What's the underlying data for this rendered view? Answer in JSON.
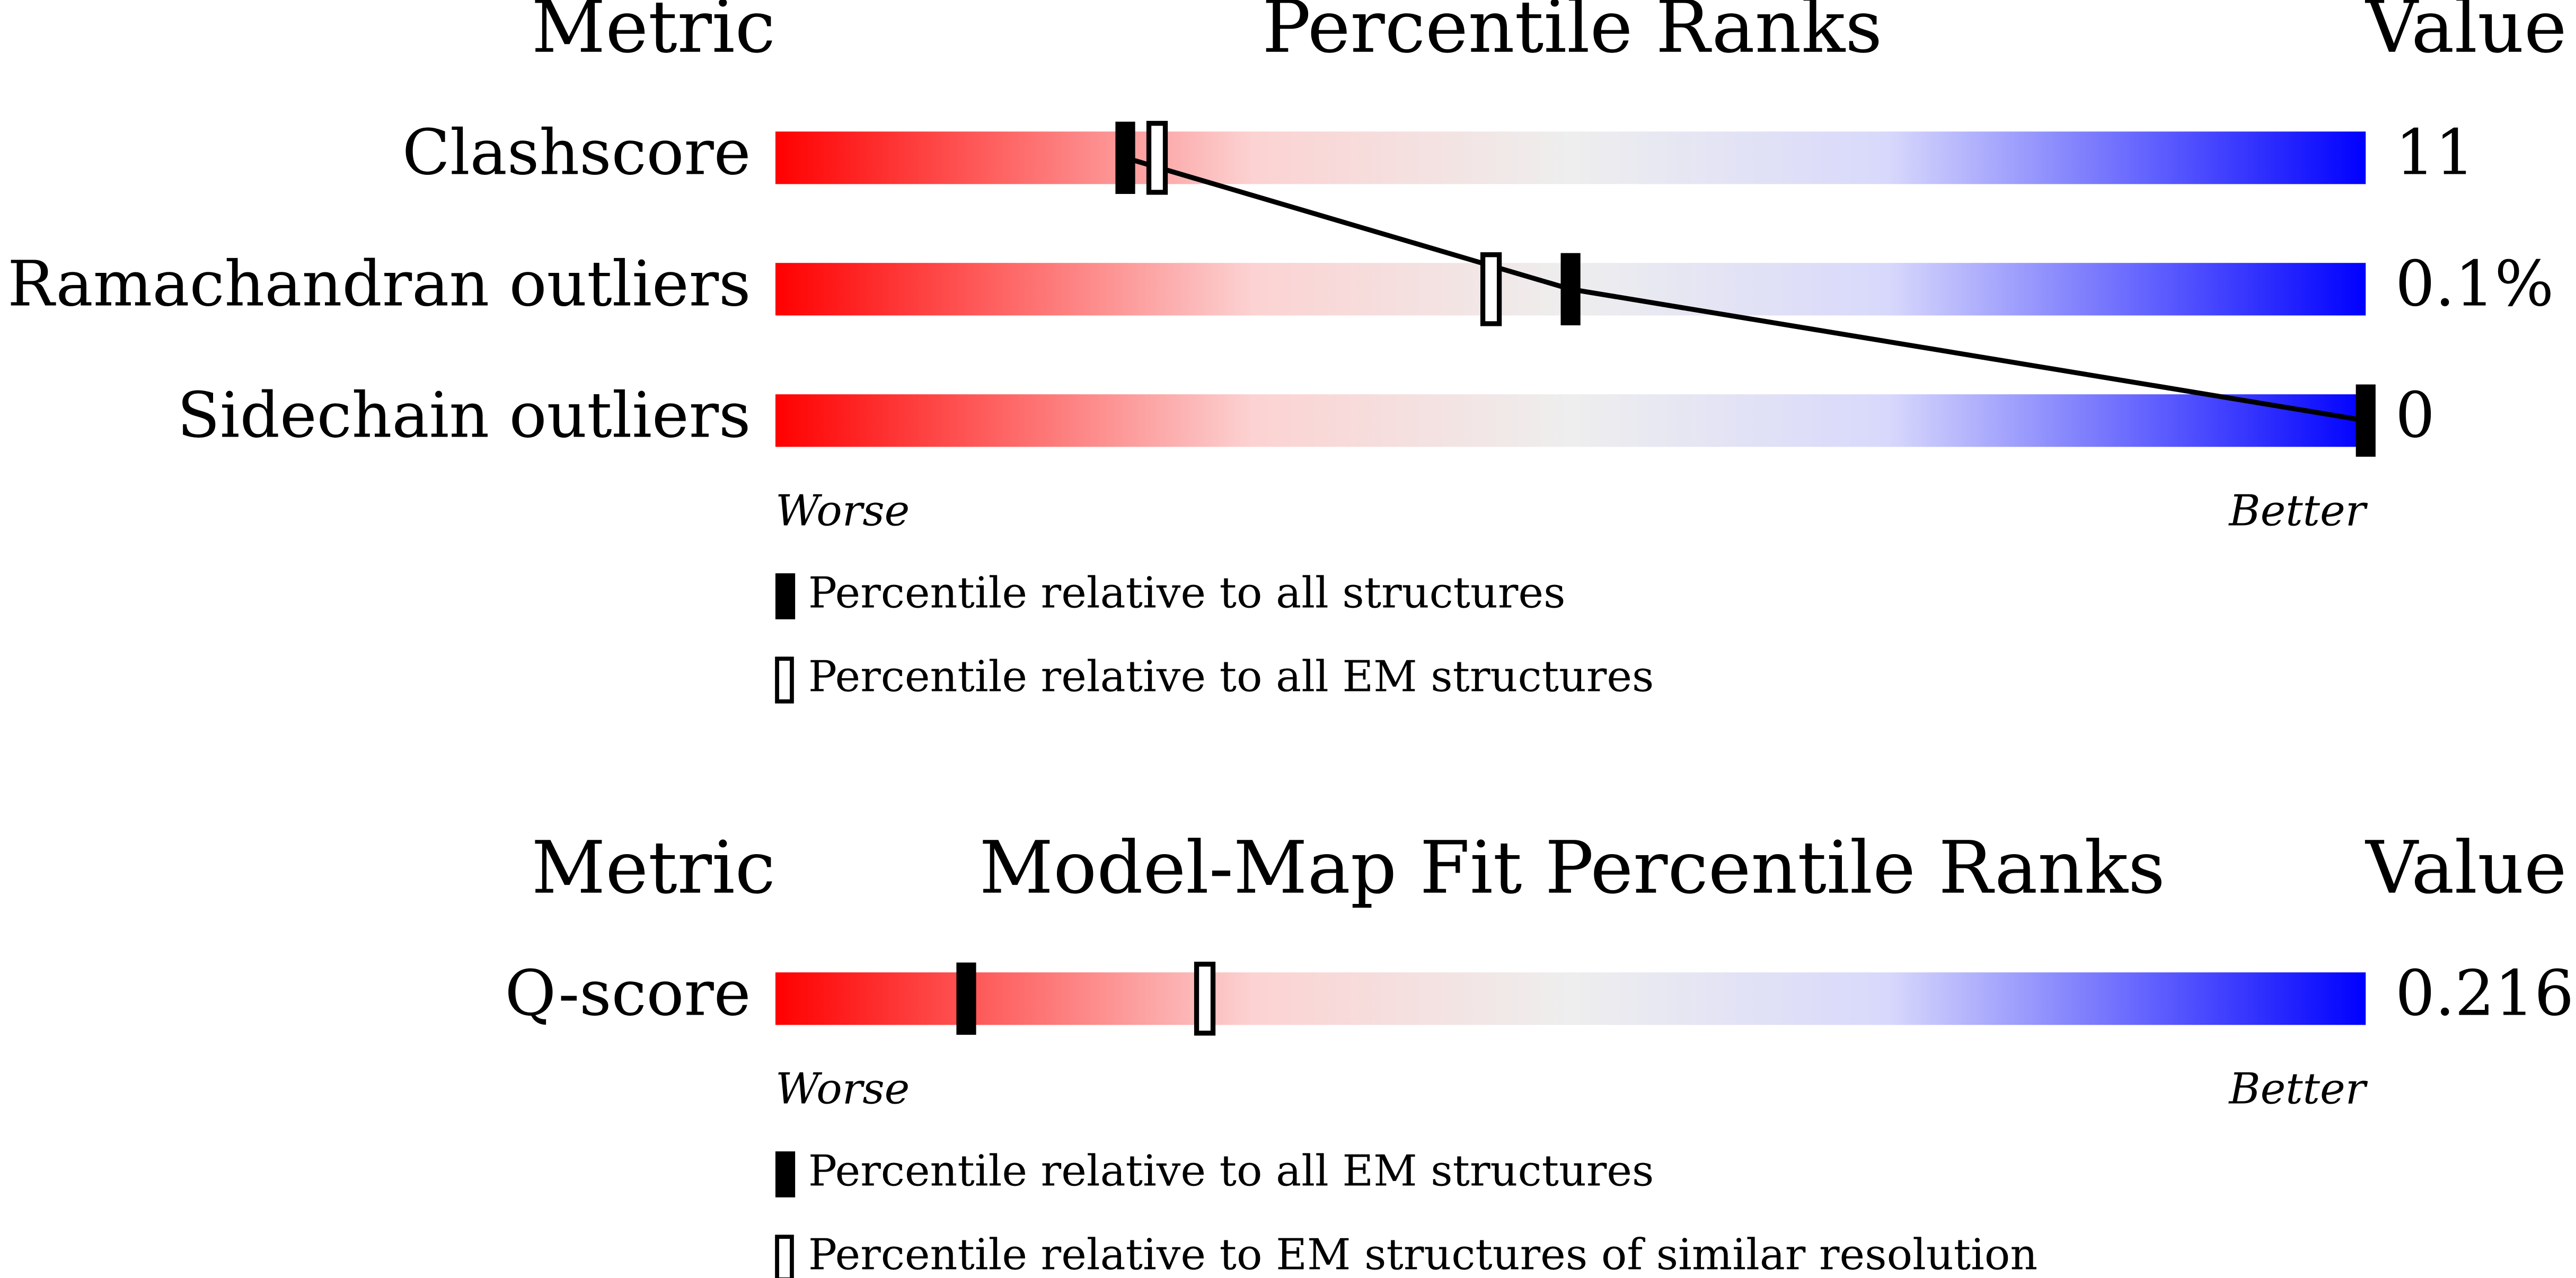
{
  "xlim": [
    0,
    100
  ],
  "panels": [
    {
      "header": {
        "metric": "Metric",
        "title": "Percentile Ranks",
        "value": "Value"
      },
      "rows": [
        {
          "metric": "Clashscore",
          "value": "11",
          "percentiles": [
            22,
            24
          ]
        },
        {
          "metric": "Ramachandran outliers",
          "value": "0.1%",
          "percentiles": [
            50,
            45
          ]
        },
        {
          "metric": "Sidechain outliers",
          "value": "0",
          "percentiles": [
            100,
            null
          ]
        }
      ],
      "worse": "Worse",
      "better": "Better",
      "markers": [
        {
          "label": "Percentile relative to all structures",
          "style": "filled"
        },
        {
          "label": "Percentile relative to all EM structures",
          "style": "hollow"
        }
      ]
    },
    {
      "header": {
        "metric": "Metric",
        "title": "Model-Map Fit Percentile Ranks",
        "value": "Value"
      },
      "rows": [
        {
          "metric": "Q-score",
          "value": "0.216",
          "percentiles": [
            12,
            27
          ]
        }
      ],
      "worse": "Worse",
      "better": "Better",
      "markers": [
        {
          "label": "Percentile relative to all EM structures",
          "style": "filled"
        },
        {
          "label": "Percentile relative to EM structures of similar resolution",
          "style": "hollow"
        }
      ]
    }
  ]
}
